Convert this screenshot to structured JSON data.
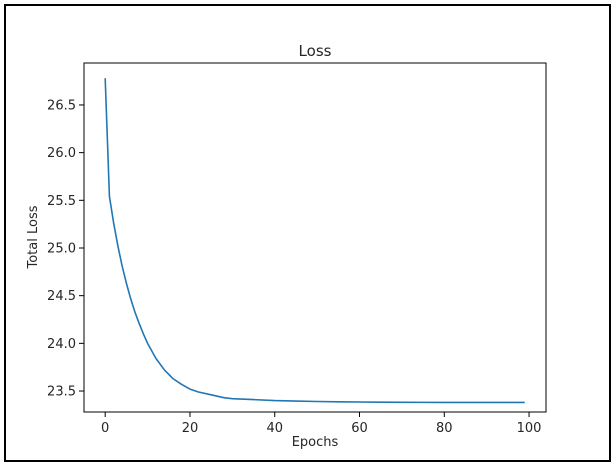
{
  "chart_data": {
    "type": "line",
    "title": "Loss",
    "xlabel": "Epochs",
    "ylabel": "Total Loss",
    "xlim": [
      -5,
      104
    ],
    "ylim": [
      23.28,
      26.94
    ],
    "xticks": [
      0,
      20,
      40,
      60,
      80,
      100
    ],
    "yticks": [
      23.5,
      24.0,
      24.5,
      25.0,
      25.5,
      26.0,
      26.5
    ],
    "ytick_labels": [
      "23.5",
      "24.0",
      "24.5",
      "25.0",
      "25.5",
      "26.0",
      "26.5"
    ],
    "grid": false,
    "series": [
      {
        "color": "#1f77b4",
        "x": [
          0,
          1,
          2,
          3,
          4,
          5,
          6,
          7,
          8,
          9,
          10,
          12,
          14,
          16,
          18,
          20,
          22,
          25,
          28,
          30,
          35,
          40,
          45,
          50,
          55,
          60,
          65,
          70,
          75,
          80,
          85,
          90,
          95,
          99
        ],
        "y": [
          26.78,
          25.54,
          25.26,
          25.02,
          24.81,
          24.63,
          24.47,
          24.33,
          24.21,
          24.1,
          24.0,
          23.84,
          23.72,
          23.63,
          23.57,
          23.52,
          23.49,
          23.46,
          23.43,
          23.42,
          23.41,
          23.4,
          23.395,
          23.39,
          23.387,
          23.385,
          23.383,
          23.382,
          23.381,
          23.38,
          23.38,
          23.38,
          23.38,
          23.38
        ]
      }
    ]
  }
}
